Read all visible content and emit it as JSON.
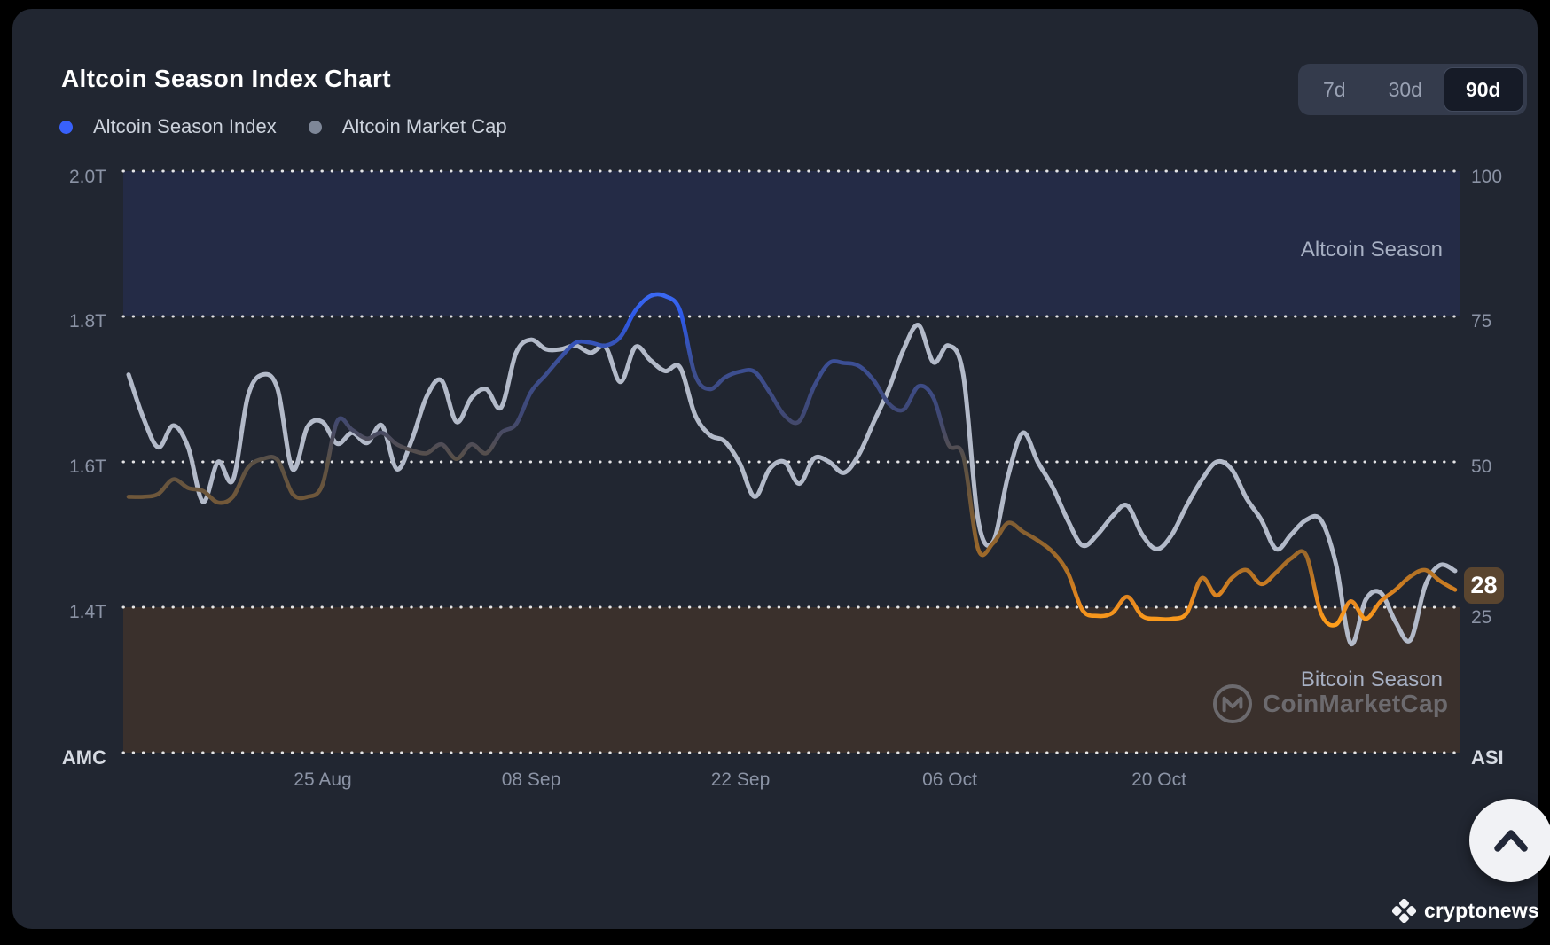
{
  "page": {
    "title": "Altcoin Season Index Chart"
  },
  "header": {
    "ranges": [
      {
        "label": "7d",
        "active": false
      },
      {
        "label": "30d",
        "active": false
      },
      {
        "label": "90d",
        "active": true
      }
    ]
  },
  "legend": {
    "items": [
      {
        "label": "Altcoin Season Index",
        "color": "#3861fb"
      },
      {
        "label": "Altcoin Market Cap",
        "color": "#7e8798"
      }
    ]
  },
  "annotations": {
    "altcoin_season": "Altcoin Season",
    "bitcoin_season": "Bitcoin Season",
    "watermark": "CoinMarketCap",
    "current_badge": "28",
    "badge_color": "#5a452f"
  },
  "footer": {
    "brand": "cryptonews"
  },
  "chart_data": {
    "type": "line",
    "title": "Altcoin Season Index Chart",
    "grid": "dotted-horizontal",
    "grid_color": "#ffffff",
    "x_unit": "day (0 = leftmost point, daily samples over 90d window)",
    "x_tick_labels": [
      {
        "label": "25 Aug",
        "day": 13
      },
      {
        "label": "08 Sep",
        "day": 27
      },
      {
        "label": "22 Sep",
        "day": 41
      },
      {
        "label": "06 Oct",
        "day": 55
      },
      {
        "label": "20 Oct",
        "day": 69
      }
    ],
    "y_left": {
      "axis_name": "AMC",
      "ticks": [
        "2.0T",
        "1.8T",
        "1.6T",
        "1.4T"
      ],
      "range": [
        1.2,
        2.0
      ],
      "unit": "T USD"
    },
    "y_right": {
      "axis_name": "ASI",
      "ticks": [
        "100",
        "75",
        "50",
        "25"
      ],
      "range": [
        0,
        100
      ]
    },
    "bands": {
      "altcoin": {
        "label": "Altcoin Season",
        "from": 75,
        "to": 100,
        "color": "#242b46"
      },
      "bitcoin": {
        "label": "Bitcoin Season",
        "from": 0,
        "to": 25,
        "color": "#3a302c"
      }
    },
    "current_value": 28,
    "series": [
      {
        "name": "Altcoin Market Cap",
        "axis": "left",
        "color": "#b3bac9",
        "width": 5,
        "values": [
          1.72,
          1.66,
          1.62,
          1.65,
          1.62,
          1.545,
          1.6,
          1.575,
          1.69,
          1.72,
          1.7,
          1.59,
          1.648,
          1.655,
          1.625,
          1.64,
          1.626,
          1.65,
          1.59,
          1.63,
          1.69,
          1.712,
          1.655,
          1.688,
          1.7,
          1.675,
          1.75,
          1.768,
          1.755,
          1.755,
          1.76,
          1.75,
          1.758,
          1.71,
          1.758,
          1.74,
          1.725,
          1.73,
          1.665,
          1.637,
          1.628,
          1.598,
          1.552,
          1.59,
          1.6,
          1.57,
          1.605,
          1.6,
          1.585,
          1.61,
          1.655,
          1.7,
          1.755,
          1.788,
          1.737,
          1.76,
          1.72,
          1.52,
          1.49,
          1.58,
          1.64,
          1.6,
          1.565,
          1.52,
          1.485,
          1.5,
          1.525,
          1.54,
          1.5,
          1.48,
          1.5,
          1.54,
          1.575,
          1.6,
          1.59,
          1.55,
          1.52,
          1.48,
          1.5,
          1.52,
          1.52,
          1.46,
          1.35,
          1.41,
          1.42,
          1.38,
          1.355,
          1.43,
          1.458,
          1.45
        ]
      },
      {
        "name": "Altcoin Season Index",
        "axis": "right",
        "width": 4.6,
        "gradient_stops": [
          {
            "offset": 0.0,
            "color": "#5a8bff"
          },
          {
            "offset": 0.2,
            "color": "#3f6df5"
          },
          {
            "offset": 0.25,
            "color": "#2d59e9"
          },
          {
            "offset": 0.33,
            "color": "#3c4f95"
          },
          {
            "offset": 0.42,
            "color": "#3f4874"
          },
          {
            "offset": 0.5,
            "color": "#5a5044"
          },
          {
            "offset": 0.6,
            "color": "#7d5c34"
          },
          {
            "offset": 0.68,
            "color": "#aa6e26"
          },
          {
            "offset": 0.74,
            "color": "#e8891f"
          },
          {
            "offset": 0.78,
            "color": "#ff9e1b"
          },
          {
            "offset": 1.0,
            "color": "#ffa51f"
          }
        ],
        "values": [
          44,
          44,
          44.5,
          47,
          45.5,
          45,
          43,
          44,
          49,
          50.5,
          50.3,
          44.5,
          44,
          46,
          57,
          55.5,
          54,
          55,
          53,
          52,
          51.5,
          53,
          50.5,
          53,
          51.5,
          55,
          56.5,
          62,
          65,
          68,
          70.5,
          70.5,
          70,
          71.5,
          76,
          78.5,
          78.5,
          76,
          65,
          62.5,
          64.5,
          65.5,
          65.5,
          62,
          58,
          57,
          63,
          67,
          67,
          66.5,
          64,
          60,
          59,
          63,
          61,
          53,
          51,
          35,
          36,
          39.5,
          38,
          36.5,
          34.5,
          31,
          24.5,
          23.5,
          24,
          26.8,
          23.5,
          23,
          23,
          24,
          30,
          27,
          30,
          31.4,
          29,
          31,
          33.4,
          34,
          24,
          22,
          26,
          23,
          26,
          28,
          30.3,
          31.4,
          29.5,
          28
        ]
      }
    ]
  }
}
